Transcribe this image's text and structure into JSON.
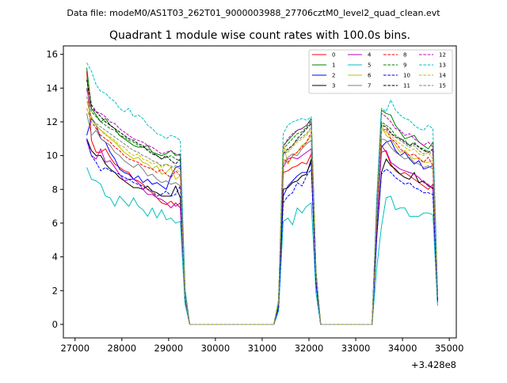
{
  "chart_data": {
    "type": "line",
    "suptitle": "Data file: modeM0/AS1T03_262T01_9000003988_27706cztM0_level2_quad_clean.evt",
    "title": "Quadrant 1 module wise count rates with 100.0s bins.",
    "xlabel": "",
    "ylabel": "",
    "x_offset_label": "+3.428e8",
    "xlim": [
      26750,
      35150
    ],
    "ylim": [
      -0.8,
      16.5
    ],
    "x_ticks": [
      27000,
      28000,
      29000,
      30000,
      31000,
      32000,
      33000,
      34000,
      35000
    ],
    "x_tick_labels": [
      "27000",
      "28000",
      "29000",
      "30000",
      "31000",
      "32000",
      "33000",
      "34000",
      "35000"
    ],
    "y_ticks": [
      0,
      2,
      4,
      6,
      8,
      10,
      12,
      14,
      16
    ],
    "y_tick_labels": [
      "0",
      "2",
      "4",
      "6",
      "8",
      "10",
      "12",
      "14",
      "16"
    ],
    "grid": false,
    "legend_position": "top-right",
    "legend_columns": 4,
    "segments": [
      {
        "start": 27250,
        "end": 29300,
        "step": 100
      },
      {
        "start": 31450,
        "end": 32050,
        "step": 100
      },
      {
        "start": 33550,
        "end": 34650,
        "step": 100
      }
    ],
    "x_gap_zero": [
      29450,
      31250,
      100
    ],
    "series": [
      {
        "name": "0",
        "color": "#ff0000",
        "dash": "solid",
        "seg1": [
          15.0,
          10.9,
          10.2,
          10.2,
          10.4,
          9.9,
          9.5,
          9.3,
          9.1,
          9.0,
          8.6,
          8.5,
          8.3,
          8.0,
          7.8,
          7.5,
          7.2,
          7.1,
          7.3,
          7.0,
          7.2
        ],
        "seg2": [
          9.0,
          9.1,
          9.3,
          9.4,
          9.6,
          9.5,
          10.1
        ],
        "seg3": [
          10.6,
          10.2,
          9.5,
          9.1,
          8.9,
          9.0,
          8.8,
          8.6,
          8.4,
          8.2,
          8.0,
          8.3
        ]
      },
      {
        "name": "1",
        "color": "#008000",
        "dash": "solid",
        "seg1": [
          15.2,
          12.8,
          12.4,
          12.0,
          12.2,
          11.8,
          11.6,
          11.2,
          11.0,
          10.8,
          10.6,
          10.5,
          10.5,
          10.6,
          10.2,
          10.1,
          10.0,
          10.1,
          10.3,
          10.0,
          10.1
        ],
        "seg2": [
          10.6,
          10.9,
          11.2,
          11.5,
          11.6,
          11.8,
          12.2
        ],
        "seg3": [
          12.7,
          12.5,
          12.4,
          11.8,
          11.4,
          11.0,
          11.1,
          11.2,
          10.8,
          10.6,
          10.4,
          10.8
        ]
      },
      {
        "name": "2",
        "color": "#0000ff",
        "dash": "solid",
        "seg1": [
          11.2,
          12.2,
          11.8,
          11.0,
          10.8,
          10.2,
          9.8,
          9.2,
          9.0,
          8.9,
          8.6,
          8.8,
          8.4,
          8.6,
          8.3,
          8.4,
          8.2,
          8.0,
          8.8,
          9.3,
          9.4
        ],
        "seg2": [
          7.6,
          8.2,
          8.5,
          8.8,
          9.0,
          9.0,
          9.6
        ],
        "seg3": [
          10.5,
          10.8,
          10.9,
          10.3,
          10.0,
          10.2,
          9.8,
          9.5,
          9.7,
          9.2,
          9.3,
          9.4
        ]
      },
      {
        "name": "3",
        "color": "#000000",
        "dash": "solid",
        "seg1": [
          11.0,
          10.3,
          10.0,
          10.0,
          9.5,
          9.2,
          9.0,
          8.7,
          8.5,
          8.3,
          8.1,
          8.1,
          8.0,
          8.2,
          7.9,
          7.8,
          7.6,
          7.6,
          7.6,
          8.2,
          7.5
        ],
        "seg2": [
          8.0,
          8.1,
          8.4,
          8.5,
          8.8,
          8.9,
          9.8
        ],
        "seg3": [
          9.0,
          9.8,
          9.4,
          9.2,
          8.9,
          8.7,
          8.6,
          9.0,
          8.4,
          8.5,
          8.2,
          8.1
        ]
      },
      {
        "name": "4",
        "color": "#bf00bf",
        "dash": "solid",
        "seg1": [
          10.9,
          10.0,
          9.8,
          10.4,
          9.6,
          9.7,
          9.3,
          8.9,
          8.5,
          8.6,
          8.6,
          8.4,
          8.0,
          7.7,
          7.7,
          7.5,
          7.4,
          7.2,
          6.9,
          7.2,
          6.9
        ],
        "seg2": [
          9.3,
          9.8,
          9.9,
          9.8,
          10.0,
          10.2,
          10.4
        ],
        "seg3": [
          10.2,
          10.3,
          9.6,
          9.4,
          9.2,
          9.1,
          9.0,
          8.9,
          8.7,
          8.4,
          8.3,
          8.0
        ]
      },
      {
        "name": "5",
        "color": "#00bfbf",
        "dash": "solid",
        "seg1": [
          9.3,
          8.6,
          8.5,
          8.3,
          7.6,
          7.5,
          7.0,
          7.6,
          7.3,
          7.0,
          7.5,
          7.0,
          6.8,
          6.4,
          6.9,
          6.3,
          6.8,
          6.2,
          6.3,
          6.0,
          6.1
        ],
        "seg2": [
          6.1,
          6.3,
          5.9,
          6.9,
          6.6,
          7.0,
          7.2
        ],
        "seg3": [
          5.8,
          7.5,
          7.6,
          6.8,
          6.9,
          6.9,
          6.4,
          6.4,
          6.4,
          6.6,
          6.6,
          6.5
        ]
      },
      {
        "name": "6",
        "color": "#bfbf00",
        "dash": "solid",
        "seg1": [
          13.2,
          12.3,
          11.8,
          11.5,
          11.3,
          11.0,
          10.8,
          10.5,
          10.2,
          10.0,
          9.8,
          9.9,
          9.6,
          9.5,
          9.2,
          9.4,
          8.9,
          9.0,
          9.3,
          8.6,
          8.8
        ],
        "seg2": [
          10.7,
          9.5,
          10.0,
          10.2,
          10.6,
          10.8,
          11.2
        ],
        "seg3": [
          11.8,
          11.2,
          11.0,
          10.6,
          10.2,
          10.3,
          10.0,
          9.8,
          9.9,
          9.6,
          9.6,
          9.7
        ]
      },
      {
        "name": "7",
        "color": "#808080",
        "dash": "solid",
        "seg1": [
          12.5,
          11.2,
          11.5,
          11.0,
          10.8,
          10.6,
          10.2,
          10.0,
          9.7,
          9.5,
          9.3,
          9.5,
          9.2,
          8.8,
          8.9,
          8.6,
          8.4,
          8.5,
          8.3,
          8.4,
          8.2
        ],
        "seg2": [
          9.5,
          9.9,
          10.1,
          10.0,
          10.4,
          10.7,
          10.9
        ],
        "seg3": [
          11.0,
          10.9,
          10.5,
          10.2,
          10.0,
          9.8,
          9.9,
          9.6,
          9.5,
          9.3,
          9.4,
          9.2
        ]
      },
      {
        "name": "8",
        "color": "#ff0000",
        "dash": "dashed",
        "seg1": [
          12.8,
          12.0,
          11.6,
          11.2,
          11.0,
          10.8,
          10.5,
          10.3,
          10.0,
          9.8,
          9.7,
          9.6,
          9.4,
          9.3,
          9.2,
          9.0,
          9.2,
          8.9,
          8.7,
          9.1,
          8.8
        ],
        "seg2": [
          9.8,
          9.6,
          10.0,
          10.2,
          10.5,
          10.8,
          11.4
        ],
        "seg3": [
          11.4,
          11.6,
          11.0,
          10.8,
          10.4,
          10.2,
          10.0,
          10.1,
          9.8,
          9.6,
          9.9,
          9.4
        ]
      },
      {
        "name": "9",
        "color": "#008000",
        "dash": "dashed",
        "seg1": [
          14.0,
          12.6,
          12.3,
          12.0,
          11.8,
          11.6,
          11.5,
          11.2,
          11.1,
          10.9,
          10.8,
          10.6,
          10.5,
          10.4,
          10.2,
          10.0,
          9.8,
          9.9,
          10.0,
          9.8,
          9.7
        ],
        "seg2": [
          10.4,
          10.7,
          11.0,
          11.3,
          11.4,
          11.7,
          12.0
        ],
        "seg3": [
          12.0,
          11.8,
          11.6,
          11.2,
          11.0,
          10.9,
          10.6,
          10.8,
          10.5,
          10.4,
          10.2,
          10.3
        ]
      },
      {
        "name": "10",
        "color": "#0000ff",
        "dash": "dashed",
        "seg1": [
          11.0,
          10.0,
          9.6,
          9.1,
          9.3,
          9.1,
          9.0,
          8.9,
          8.7,
          8.6,
          8.4,
          8.3,
          8.2,
          8.0,
          7.9,
          7.6,
          7.7,
          7.9,
          7.6,
          7.7,
          8.2
        ],
        "seg2": [
          7.2,
          7.6,
          7.8,
          8.4,
          8.2,
          8.8,
          9.2
        ],
        "seg3": [
          8.9,
          9.2,
          9.0,
          8.7,
          8.5,
          8.3,
          8.4,
          8.1,
          8.0,
          7.8,
          7.8,
          7.7
        ]
      },
      {
        "name": "11",
        "color": "#000000",
        "dash": "dashed",
        "seg1": [
          14.5,
          13.0,
          12.6,
          12.3,
          12.0,
          11.8,
          11.6,
          11.4,
          11.2,
          11.0,
          10.9,
          10.7,
          10.6,
          10.3,
          10.1,
          10.0,
          9.8,
          10.0,
          9.7,
          9.5,
          9.8
        ],
        "seg2": [
          10.1,
          10.4,
          10.6,
          11.0,
          11.3,
          11.6,
          11.9
        ],
        "seg3": [
          11.8,
          11.7,
          11.3,
          11.1,
          11.0,
          10.8,
          10.6,
          10.7,
          10.5,
          10.3,
          10.2,
          10.4
        ]
      },
      {
        "name": "12",
        "color": "#bf00bf",
        "dash": "dashed",
        "seg1": [
          13.9,
          12.8,
          12.6,
          12.5,
          12.3,
          12.0,
          11.9,
          11.6,
          11.4,
          11.2,
          11.0,
          10.9,
          10.8,
          10.6,
          10.5,
          10.3,
          10.1,
          10.2,
          10.3,
          10.1,
          10.0
        ],
        "seg2": [
          10.5,
          11.0,
          11.3,
          11.5,
          11.6,
          11.8,
          12.1
        ],
        "seg3": [
          12.5,
          12.3,
          12.0,
          11.6,
          11.5,
          11.2,
          11.3,
          11.0,
          10.8,
          10.6,
          10.8,
          10.5
        ]
      },
      {
        "name": "13",
        "color": "#00bfbf",
        "dash": "dashed",
        "seg1": [
          15.5,
          15.0,
          14.2,
          13.8,
          13.7,
          13.4,
          13.2,
          12.8,
          12.6,
          12.8,
          12.3,
          12.4,
          12.2,
          11.8,
          11.6,
          11.3,
          11.2,
          11.0,
          11.2,
          11.1,
          10.9
        ],
        "seg2": [
          11.3,
          11.8,
          12.0,
          12.1,
          12.2,
          12.1,
          12.3
        ],
        "seg3": [
          12.8,
          12.6,
          13.3,
          12.7,
          12.4,
          12.2,
          12.1,
          11.8,
          11.6,
          11.5,
          11.8,
          11.6
        ]
      },
      {
        "name": "14",
        "color": "#bfbf00",
        "dash": "dashed",
        "seg1": [
          12.8,
          12.0,
          11.7,
          11.5,
          11.2,
          11.1,
          10.9,
          10.6,
          10.5,
          10.2,
          10.0,
          10.1,
          9.8,
          9.7,
          9.5,
          9.6,
          9.3,
          9.5,
          9.4,
          9.2,
          9.0
        ],
        "seg2": [
          10.6,
          10.2,
          10.5,
          10.8,
          11.0,
          11.2,
          11.6
        ],
        "seg3": [
          11.6,
          11.4,
          11.2,
          10.9,
          10.7,
          10.5,
          10.3,
          10.4,
          10.1,
          10.0,
          10.2,
          9.8
        ]
      },
      {
        "name": "15",
        "color": "#808080",
        "dash": "dashed",
        "seg1": [
          13.5,
          12.2,
          11.9,
          11.7,
          11.5,
          11.3,
          11.1,
          10.9,
          10.7,
          10.5,
          10.3,
          10.2,
          10.0,
          9.9,
          9.7,
          9.6,
          9.4,
          9.5,
          9.3,
          9.4,
          9.2
        ],
        "seg2": [
          10.0,
          10.3,
          10.6,
          10.9,
          11.1,
          11.3,
          11.7
        ],
        "seg3": [
          11.9,
          11.7,
          11.4,
          11.1,
          10.9,
          10.7,
          10.5,
          10.6,
          10.3,
          10.1,
          10.3,
          10.0
        ]
      }
    ]
  }
}
